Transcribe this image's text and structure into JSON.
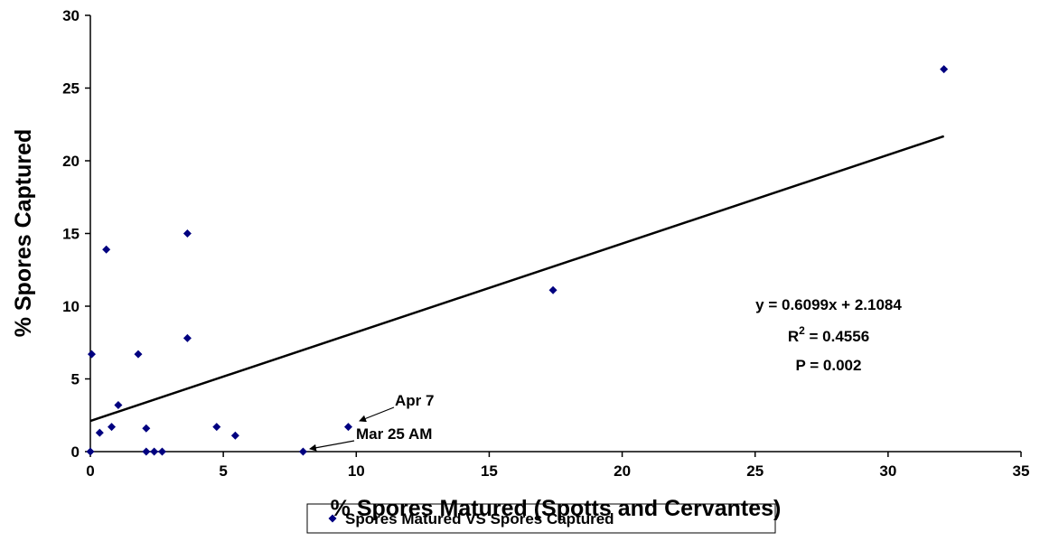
{
  "chart_data": {
    "type": "scatter",
    "x_label": "% Spores Matured (Spotts and Cervantes)",
    "y_label": "% Spores Captured",
    "xlim": [
      0,
      35
    ],
    "ylim": [
      0,
      30
    ],
    "xticks": [
      0,
      5,
      10,
      15,
      20,
      25,
      30,
      35
    ],
    "yticks": [
      0,
      5,
      10,
      15,
      20,
      25,
      30
    ],
    "legend": "bottom",
    "series": [
      {
        "name": "Spores Matured VS Spores Captured",
        "color": "#000080",
        "x": [
          0,
          0.05,
          0.35,
          0.6,
          0.8,
          1.05,
          1.8,
          2.1,
          2.1,
          2.4,
          2.7,
          3.65,
          3.65,
          4.75,
          5.45,
          8.0,
          9.7,
          17.4,
          32.1
        ],
        "values": [
          0,
          6.7,
          1.3,
          13.9,
          1.7,
          3.2,
          6.7,
          1.6,
          0,
          0,
          0,
          15.0,
          7.8,
          1.7,
          1.1,
          0,
          1.7,
          11.1,
          26.3
        ]
      }
    ],
    "trendline": {
      "slope": 0.6099,
      "intercept": 2.1084,
      "x_range": [
        0,
        32.1
      ],
      "color": "#000000"
    },
    "equation": "y = 0.6099x + 2.1084",
    "r_squared": {
      "symbol": "R",
      "exponent": "2",
      "text": " = 0.4556"
    },
    "p_value": "P = 0.002",
    "annotations": [
      "Apr 7",
      "Mar 25 AM"
    ]
  }
}
